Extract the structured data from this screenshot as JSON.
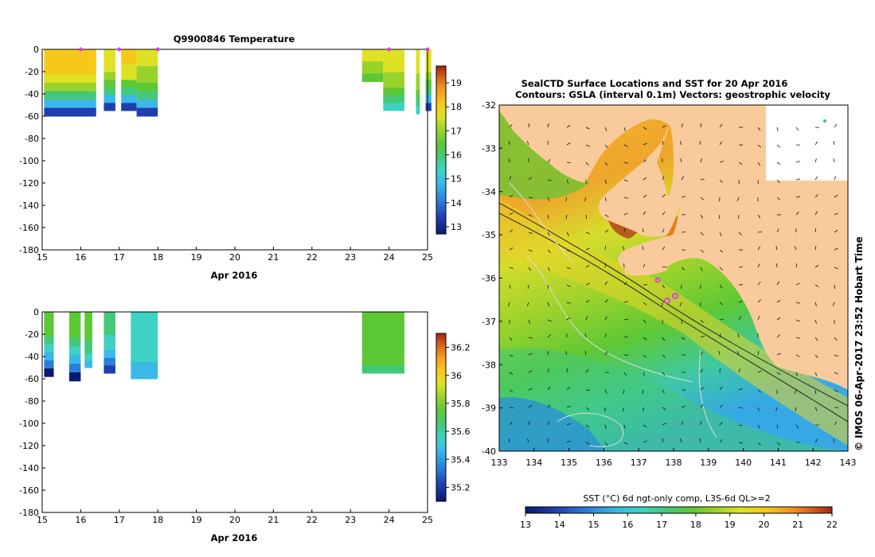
{
  "colors": {
    "land": "#f9cb9c",
    "ctd_marker": "#e040e0",
    "palette": [
      "#0a1a6e",
      "#1f3fb0",
      "#2a7fd8",
      "#3bb8e8",
      "#3fd2c4",
      "#44c878",
      "#5dc836",
      "#9ad22c",
      "#dfe224",
      "#f6c81c",
      "#f49a24",
      "#d8641c",
      "#a42410"
    ]
  },
  "top_chart": {
    "title": "Q9900846  Temperature",
    "xlabel": "Apr 2016",
    "x_ticks": [
      "15",
      "16",
      "17",
      "18",
      "19",
      "20",
      "21",
      "22",
      "23",
      "24",
      "25"
    ],
    "y_ticks": [
      "0",
      "-20",
      "-40",
      "-60",
      "-80",
      "-100",
      "-120",
      "-140",
      "-160",
      "-180"
    ],
    "colorbar_ticks": [
      "19",
      "18",
      "17",
      "16",
      "15",
      "14",
      "13"
    ]
  },
  "bottom_chart": {
    "xlabel": "Apr 2016",
    "x_ticks": [
      "15",
      "16",
      "17",
      "18",
      "19",
      "20",
      "21",
      "22",
      "23",
      "24",
      "25"
    ],
    "y_ticks": [
      "0",
      "-20",
      "-40",
      "-60",
      "-80",
      "-100",
      "-120",
      "-140",
      "-160",
      "-180"
    ],
    "colorbar_ticks": [
      "36.2",
      "36",
      "35.8",
      "35.6",
      "35.4",
      "35.2"
    ]
  },
  "map": {
    "title_line1": "SealCTD Surface Locations and SST for 20 Apr 2016",
    "title_line2": "Contours: GSLA (interval 0.1m) Vectors: geostrophic velocity",
    "lat_ticks": [
      "-32",
      "-33",
      "-34",
      "-35",
      "-36",
      "-37",
      "-38",
      "-39",
      "-40"
    ],
    "lon_ticks": [
      "133",
      "134",
      "135",
      "136",
      "137",
      "138",
      "139",
      "140",
      "141",
      "142",
      "143"
    ],
    "side_label": "© IMOS 06-Apr-2017 23:52 Hobart Time",
    "colorbar_label": "SST (°C) 6d ngt-only comp, L3S-6d QL>=2",
    "colorbar_ticks": [
      "13",
      "14",
      "15",
      "16",
      "17",
      "18",
      "19",
      "20",
      "21",
      "22"
    ]
  },
  "chart_data": [
    {
      "type": "heatmap",
      "title": "Q9900846  Temperature",
      "xlabel": "Apr 2016",
      "ylabel": "",
      "xlim": [
        15,
        25
      ],
      "ylim": [
        -180,
        0
      ],
      "colorbar_range": [
        12.7,
        19.7
      ],
      "profiles": [
        {
          "x": [
            15.05,
            16.4
          ],
          "bottom": -60,
          "surface": 18.0,
          "deep": 13.0
        },
        {
          "x": [
            16.6,
            16.9
          ],
          "bottom": -55,
          "surface": 17.6,
          "deep": 13.0
        },
        {
          "x": [
            17.05,
            17.45
          ],
          "bottom": -55,
          "surface": 17.9,
          "deep": 13.0
        },
        {
          "x": [
            17.45,
            18.0
          ],
          "bottom": -60,
          "surface": 17.3,
          "deep": 13.3
        },
        {
          "x": [
            23.3,
            23.85
          ],
          "bottom": -29,
          "surface": 17.2,
          "deep": 16.2
        },
        {
          "x": [
            23.85,
            24.4
          ],
          "bottom": -55,
          "surface": 17.3,
          "deep": 14.8
        },
        {
          "x": [
            24.7,
            24.8
          ],
          "bottom": -58,
          "surface": 17.4,
          "deep": 14.8
        },
        {
          "x": [
            24.95,
            25.1
          ],
          "bottom": -55,
          "surface": 17.4,
          "deep": 13.3
        }
      ]
    },
    {
      "type": "heatmap",
      "title": "",
      "xlabel": "Apr 2016",
      "ylabel": "",
      "xlim": [
        15,
        25
      ],
      "ylim": [
        -180,
        0
      ],
      "colorbar_range": [
        35.1,
        36.3
      ],
      "profiles": [
        {
          "x": [
            15.05,
            15.3
          ],
          "bottom": -58,
          "surface": 35.7,
          "deep": 35.15
        },
        {
          "x": [
            15.7,
            16.0
          ],
          "bottom": -62,
          "surface": 35.7,
          "deep": 35.15
        },
        {
          "x": [
            16.1,
            16.3
          ],
          "bottom": -50,
          "surface": 35.7,
          "deep": 35.4
        },
        {
          "x": [
            16.6,
            16.9
          ],
          "bottom": -55,
          "surface": 35.6,
          "deep": 35.2
        },
        {
          "x": [
            17.3,
            18.0
          ],
          "bottom": -60,
          "surface": 35.55,
          "deep": 35.4
        },
        {
          "x": [
            23.3,
            24.4
          ],
          "bottom": -55,
          "surface": 35.7,
          "deep": 35.65
        }
      ]
    },
    {
      "type": "heatmap",
      "title": "SealCTD Surface Locations and SST for 20 Apr 2016",
      "xlabel": "",
      "ylabel": "",
      "xlim": [
        133,
        143
      ],
      "ylim": [
        -40,
        -32
      ],
      "colorbar_range": [
        13,
        22
      ]
    }
  ]
}
